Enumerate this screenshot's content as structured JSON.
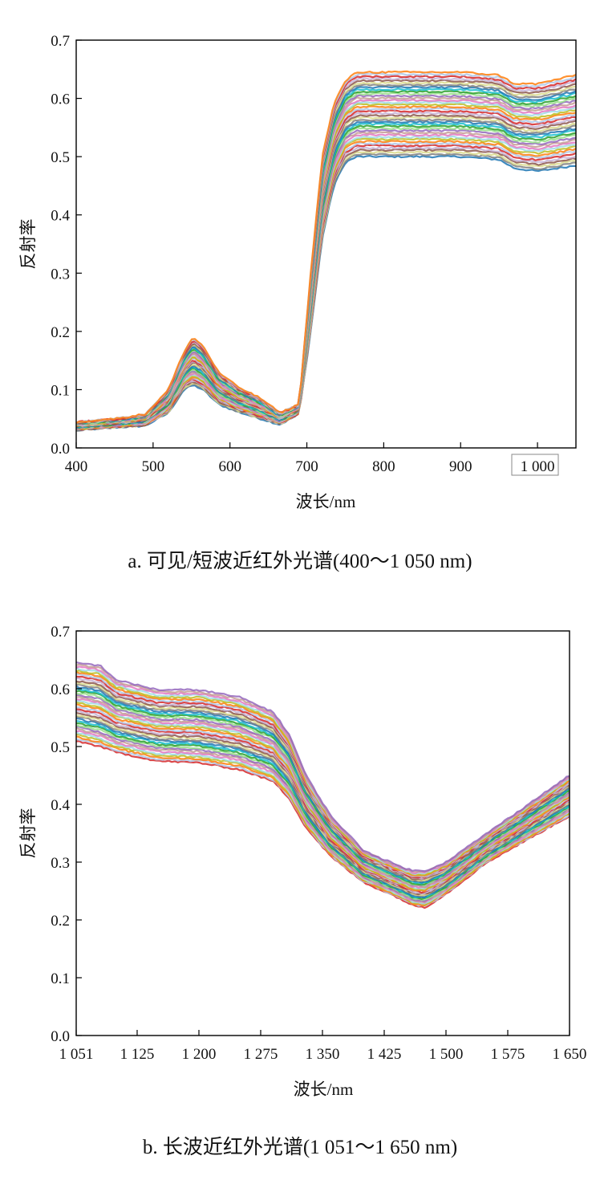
{
  "chart_data": [
    {
      "type": "line",
      "panel": "a",
      "caption": "a. 可见/短波近红外光谱(400～1 050 nm)",
      "xlabel": "波长/nm",
      "ylabel": "反射率",
      "xlim": [
        400,
        1050
      ],
      "ylim": [
        0,
        0.7
      ],
      "xticks": [
        400,
        500,
        600,
        700,
        800,
        900,
        1000
      ],
      "xtick_labels": [
        "400",
        "500",
        "600",
        "700",
        "800",
        "900",
        "1 000"
      ],
      "yticks": [
        0.0,
        0.1,
        0.2,
        0.3,
        0.4,
        0.5,
        0.6,
        0.7
      ],
      "ytick_labels": [
        "0.0",
        "0.1",
        "0.2",
        "0.3",
        "0.4",
        "0.5",
        "0.6",
        "0.7"
      ],
      "grid": false,
      "legend": "none",
      "series_count": 40,
      "envelope": {
        "x": [
          400,
          450,
          490,
          520,
          540,
          552,
          565,
          585,
          610,
          640,
          665,
          690,
          705,
          720,
          735,
          750,
          765,
          800,
          900,
          950,
          970,
          1000,
          1050
        ],
        "y_min": [
          0.03,
          0.035,
          0.038,
          0.06,
          0.1,
          0.108,
          0.1,
          0.075,
          0.062,
          0.05,
          0.04,
          0.058,
          0.2,
          0.36,
          0.45,
          0.49,
          0.5,
          0.5,
          0.5,
          0.495,
          0.48,
          0.475,
          0.485
        ],
        "y_max": [
          0.045,
          0.05,
          0.058,
          0.1,
          0.165,
          0.19,
          0.175,
          0.13,
          0.105,
          0.085,
          0.06,
          0.075,
          0.3,
          0.5,
          0.59,
          0.63,
          0.645,
          0.645,
          0.645,
          0.64,
          0.625,
          0.625,
          0.64
        ]
      }
    },
    {
      "type": "line",
      "panel": "b",
      "caption": "b. 长波近红外光谱(1 051～1 650 nm)",
      "xlabel": "波长/nm",
      "ylabel": "反射率",
      "xlim": [
        1051,
        1650
      ],
      "ylim": [
        0,
        0.7
      ],
      "xticks": [
        1051,
        1125,
        1200,
        1275,
        1350,
        1425,
        1500,
        1575,
        1650
      ],
      "xtick_labels": [
        "1 051",
        "1 125",
        "1 200",
        "1 275",
        "1 350",
        "1 425",
        "1 500",
        "1 575",
        "1 650"
      ],
      "yticks": [
        0.0,
        0.1,
        0.2,
        0.3,
        0.4,
        0.5,
        0.6,
        0.7
      ],
      "ytick_labels": [
        "0.0",
        "0.1",
        "0.2",
        "0.3",
        "0.4",
        "0.5",
        "0.6",
        "0.7"
      ],
      "grid": false,
      "legend": "none",
      "series_count": 40,
      "envelope": {
        "x": [
          1051,
          1080,
          1100,
          1150,
          1200,
          1250,
          1290,
          1310,
          1330,
          1360,
          1400,
          1440,
          1460,
          1475,
          1500,
          1550,
          1600,
          1650
        ],
        "y_min": [
          0.51,
          0.5,
          0.49,
          0.475,
          0.472,
          0.46,
          0.44,
          0.41,
          0.36,
          0.31,
          0.265,
          0.24,
          0.225,
          0.222,
          0.245,
          0.3,
          0.34,
          0.38
        ],
        "y_max": [
          0.645,
          0.64,
          0.615,
          0.598,
          0.598,
          0.585,
          0.56,
          0.52,
          0.45,
          0.38,
          0.32,
          0.295,
          0.285,
          0.285,
          0.3,
          0.35,
          0.4,
          0.45
        ]
      }
    }
  ],
  "colors": {
    "palette": [
      "#1f77b4",
      "#ff7f0e",
      "#2ca02c",
      "#d62728",
      "#9467bd",
      "#8c564b",
      "#e377c2",
      "#7f7f7f",
      "#bcbd22",
      "#17becf",
      "#aec7e8",
      "#98df8a",
      "#c5b0d5",
      "#c49c94",
      "#dbdb8d",
      "#9edae5"
    ]
  }
}
